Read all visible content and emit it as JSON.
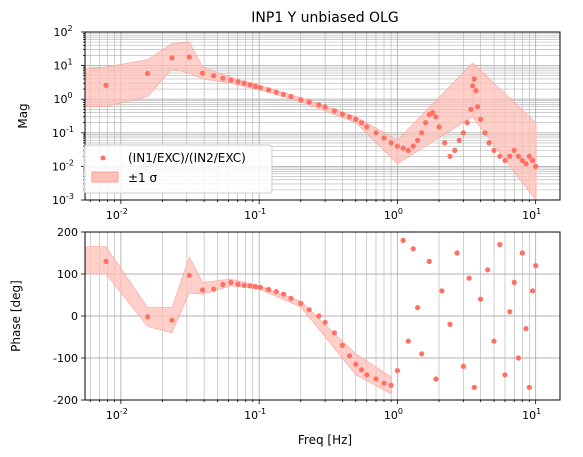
{
  "chart_data": [
    {
      "type": "scatter",
      "title": "INP1 Y unbiased OLG",
      "xlabel": "",
      "ylabel": "Mag",
      "xscale": "log",
      "yscale": "log",
      "xlim": [
        0.0055,
        15
      ],
      "ylim": [
        0.001,
        100
      ],
      "grid": true,
      "legend_placement": "lower-left",
      "x_ticks": [
        "10^-2",
        "10^-1",
        "10^0",
        "10^1"
      ],
      "y_ticks": [
        "10^-3",
        "10^-2",
        "10^-1",
        "10^0",
        "10^1",
        "10^2"
      ],
      "series": [
        {
          "name": "(IN1/EXC)/(IN2/EXC)",
          "kind": "points",
          "x": [
            0.0078,
            0.0156,
            0.0234,
            0.03125,
            0.039,
            0.0469,
            0.0547,
            0.0625,
            0.0703,
            0.078,
            0.086,
            0.094,
            0.102,
            0.117,
            0.133,
            0.15,
            0.17,
            0.2,
            0.23,
            0.27,
            0.3,
            0.35,
            0.4,
            0.45,
            0.5,
            0.55,
            0.6,
            0.7,
            0.8,
            0.9,
            1.0,
            1.1,
            1.2,
            1.3,
            1.4,
            1.5,
            1.6,
            1.7,
            1.8,
            1.9,
            2.0,
            2.2,
            2.4,
            2.6,
            2.8,
            3.0,
            3.2,
            3.4,
            3.5,
            3.6,
            3.7,
            3.8,
            4.0,
            4.3,
            4.6,
            5.0,
            5.5,
            6.0,
            6.5,
            7.0,
            7.5,
            8.0,
            8.5,
            9.0,
            9.5,
            10.0
          ],
          "y": [
            2.6,
            5.8,
            17,
            18,
            6.0,
            5.0,
            4.2,
            3.7,
            3.3,
            3.0,
            2.7,
            2.4,
            2.2,
            1.9,
            1.6,
            1.4,
            1.2,
            0.95,
            0.82,
            0.68,
            0.58,
            0.45,
            0.36,
            0.3,
            0.25,
            0.2,
            0.15,
            0.1,
            0.07,
            0.05,
            0.04,
            0.035,
            0.03,
            0.04,
            0.06,
            0.1,
            0.2,
            0.35,
            0.4,
            0.3,
            0.15,
            0.05,
            0.02,
            0.03,
            0.06,
            0.1,
            0.2,
            0.5,
            2.5,
            4.0,
            1.8,
            0.6,
            0.25,
            0.1,
            0.05,
            0.03,
            0.02,
            0.015,
            0.02,
            0.03,
            0.02,
            0.015,
            0.012,
            0.02,
            0.015,
            0.01
          ],
          "color": "#ff7063"
        },
        {
          "name": "±1 σ",
          "kind": "band",
          "x": [
            0.0055,
            0.0078,
            0.0156,
            0.0234,
            0.03125,
            0.039,
            0.0625,
            0.1,
            0.2,
            0.5,
            1.0,
            3.5,
            10.0
          ],
          "upper": [
            8,
            9,
            15,
            45,
            50,
            9,
            4.5,
            2.6,
            1.1,
            0.3,
            0.06,
            12,
            0.2
          ],
          "lower": [
            0.6,
            0.6,
            1.2,
            8,
            6,
            4,
            3.0,
            1.9,
            0.85,
            0.2,
            0.012,
            0.3,
            0.001
          ],
          "color": "#ffc0b8"
        }
      ]
    },
    {
      "type": "scatter",
      "title": "",
      "xlabel": "Freq [Hz]",
      "ylabel": "Phase [deg]",
      "xscale": "log",
      "yscale": "linear",
      "xlim": [
        0.0055,
        15
      ],
      "ylim": [
        -200,
        200
      ],
      "grid": true,
      "x_ticks": [
        "10^-2",
        "10^-1",
        "10^0",
        "10^1"
      ],
      "y_ticks": [
        "-200",
        "-100",
        "0",
        "100",
        "200"
      ],
      "series": [
        {
          "name": "(IN1/EXC)/(IN2/EXC)",
          "kind": "points",
          "x": [
            0.0078,
            0.0156,
            0.0234,
            0.03125,
            0.039,
            0.0469,
            0.0547,
            0.0625,
            0.0703,
            0.078,
            0.086,
            0.094,
            0.102,
            0.117,
            0.133,
            0.15,
            0.17,
            0.2,
            0.23,
            0.27,
            0.3,
            0.35,
            0.4,
            0.45,
            0.5,
            0.55,
            0.6,
            0.7,
            0.8,
            0.9,
            1.0,
            1.1,
            1.2,
            1.3,
            1.4,
            1.5,
            1.7,
            1.9,
            2.1,
            2.4,
            2.7,
            3.0,
            3.3,
            3.6,
            4.0,
            4.5,
            5.0,
            5.5,
            6.0,
            6.5,
            7.0,
            7.5,
            8.0,
            8.5,
            9.0,
            9.5,
            10.0
          ],
          "y": [
            130,
            -2,
            -10,
            97,
            62,
            64,
            75,
            80,
            76,
            73,
            72,
            70,
            68,
            63,
            58,
            52,
            42,
            30,
            15,
            0,
            -15,
            -40,
            -70,
            -95,
            -115,
            -128,
            -140,
            -150,
            -160,
            -165,
            -130,
            180,
            -60,
            160,
            20,
            -90,
            130,
            -150,
            60,
            -20,
            150,
            -120,
            90,
            -170,
            40,
            110,
            -60,
            170,
            -140,
            10,
            80,
            -100,
            150,
            -30,
            -170,
            60,
            120
          ],
          "color": "#ff7063"
        },
        {
          "name": "±1 σ",
          "kind": "band",
          "x": [
            0.0055,
            0.0078,
            0.0156,
            0.0234,
            0.03125,
            0.039,
            0.0625,
            0.1,
            0.2,
            0.5,
            0.9
          ],
          "upper": [
            165,
            165,
            20,
            20,
            140,
            80,
            88,
            72,
            35,
            -90,
            -145
          ],
          "lower": [
            100,
            100,
            -25,
            -40,
            55,
            52,
            72,
            64,
            22,
            -140,
            -185
          ],
          "color": "#ffc0b8"
        }
      ]
    }
  ]
}
